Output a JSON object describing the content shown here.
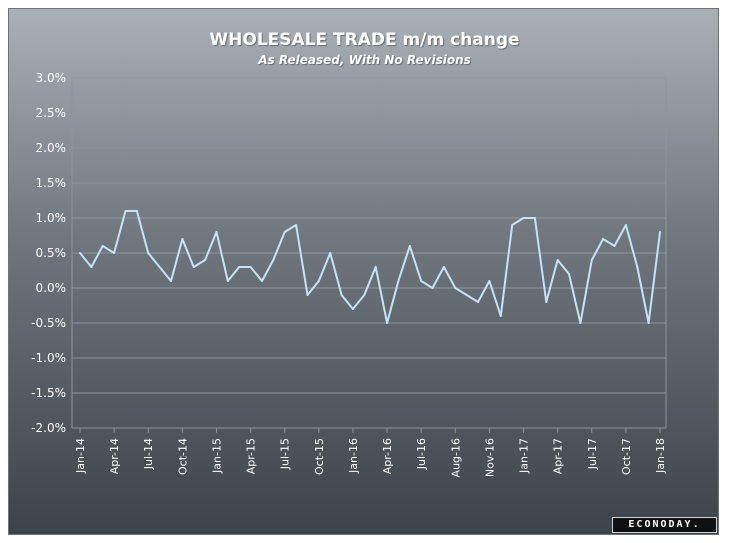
{
  "chart_data": {
    "type": "line",
    "title": "WHOLESALE TRADE m/m change",
    "subtitle": "As Released, With No Revisions",
    "y_ticks": [
      "3.0%",
      "2.5%",
      "2.0%",
      "1.5%",
      "1.0%",
      "0.5%",
      "0.0%",
      "-0.5%",
      "-1.0%",
      "-1.5%",
      "-2.0%"
    ],
    "ylim": [
      -2.0,
      3.0
    ],
    "x_tick_labels": [
      "Jan-14",
      "Apr-14",
      "Jul-14",
      "Oct-14",
      "Jan-15",
      "Apr-15",
      "Jul-15",
      "Oct-15",
      "Jan-16",
      "Apr-16",
      "Jul-16",
      "Aug-16",
      "Nov-16",
      "Jan-17",
      "Apr-17",
      "Jul-17",
      "Oct-17",
      "Jan-18"
    ],
    "x_tick_index": [
      0,
      3,
      6,
      9,
      12,
      15,
      18,
      21,
      24,
      27,
      30,
      33,
      36,
      39,
      42,
      45,
      48,
      51
    ],
    "grid": true,
    "series": [
      {
        "color": "#c4e3f7",
        "values": [
          0.5,
          0.3,
          0.6,
          0.5,
          1.1,
          1.1,
          0.5,
          0.3,
          0.1,
          0.7,
          0.3,
          0.4,
          0.8,
          0.1,
          0.3,
          0.3,
          0.1,
          0.4,
          0.8,
          0.9,
          -0.1,
          0.1,
          0.5,
          -0.1,
          -0.3,
          -0.1,
          0.3,
          -0.5,
          0.1,
          0.6,
          0.1,
          0.0,
          0.3,
          0.0,
          -0.1,
          -0.2,
          0.1,
          -0.4,
          0.9,
          1.0,
          1.0,
          -0.2,
          0.4,
          0.2,
          -0.5,
          0.4,
          0.7,
          0.6,
          0.9,
          0.3,
          -0.5,
          0.8
        ]
      }
    ]
  },
  "brand": "ECONODAY."
}
